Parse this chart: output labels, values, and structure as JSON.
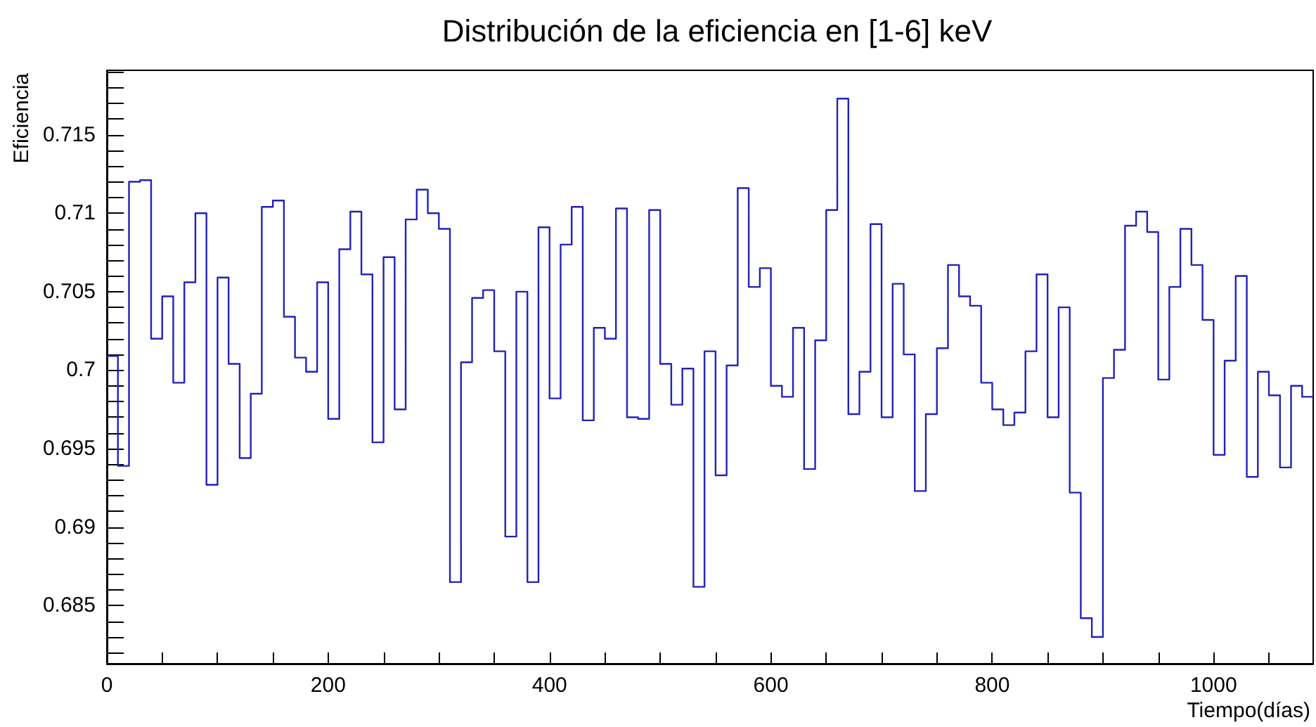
{
  "chart_data": {
    "type": "histogram",
    "title": "Distribución de la eficiencia en [1-6] keV",
    "xlabel": "Tiempo(días)",
    "ylabel": "Eficiencia",
    "color": "#2222bb",
    "grid": false,
    "bins": [
      0,
      10,
      20,
      30,
      40,
      50,
      60,
      70,
      80,
      90,
      100,
      110,
      120,
      130,
      140,
      150,
      160,
      170,
      180,
      190,
      200,
      210,
      220,
      230,
      240,
      250,
      260,
      270,
      280,
      290,
      300,
      310,
      320,
      330,
      340,
      350,
      360,
      370,
      380,
      390,
      400,
      410,
      420,
      430,
      440,
      450,
      460,
      470,
      480,
      490,
      500,
      510,
      520,
      530,
      540,
      550,
      560,
      570,
      580,
      590,
      600,
      610,
      620,
      630,
      640,
      650,
      660,
      670,
      680,
      690,
      700,
      710,
      720,
      730,
      740,
      750,
      760,
      770,
      780,
      790,
      800,
      810,
      820,
      830,
      840,
      850,
      860,
      870,
      880,
      890,
      900,
      910,
      920,
      930,
      940,
      950,
      960,
      970,
      980,
      990,
      1000,
      1010,
      1020,
      1030,
      1040,
      1050,
      1060,
      1070,
      1080,
      1090
    ],
    "values": [
      0.7009,
      0.6939,
      0.712,
      0.7121,
      0.702,
      0.7047,
      0.6992,
      0.7056,
      0.71,
      0.6927,
      0.7059,
      0.7004,
      0.6944,
      0.6985,
      0.7104,
      0.7108,
      0.7034,
      0.7008,
      0.6999,
      0.7056,
      0.6969,
      0.7077,
      0.7101,
      0.7061,
      0.6954,
      0.7072,
      0.6975,
      0.7096,
      0.7115,
      0.71,
      0.709,
      0.6865,
      0.7005,
      0.7046,
      0.7051,
      0.7012,
      0.6894,
      0.705,
      0.6865,
      0.7091,
      0.6982,
      0.708,
      0.7104,
      0.6968,
      0.7027,
      0.702,
      0.7103,
      0.697,
      0.6969,
      0.7102,
      0.7004,
      0.6978,
      0.7001,
      0.6862,
      0.7012,
      0.6933,
      0.7003,
      0.7116,
      0.7053,
      0.7065,
      0.699,
      0.6983,
      0.7027,
      0.6937,
      0.7019,
      0.7102,
      0.7173,
      0.6972,
      0.6999,
      0.7093,
      0.697,
      0.7055,
      0.701,
      0.6923,
      0.6972,
      0.7014,
      0.7067,
      0.7047,
      0.7041,
      0.6992,
      0.6975,
      0.6965,
      0.6973,
      0.7012,
      0.7061,
      0.697,
      0.704,
      0.6922,
      0.6842,
      0.683,
      0.6995,
      0.7013,
      0.7092,
      0.7101,
      0.7088,
      0.6994,
      0.7053,
      0.709,
      0.7067,
      0.7032,
      0.6946,
      0.7006,
      0.706,
      0.6932,
      0.6999,
      0.6984,
      0.6938,
      0.699,
      0.6983
    ],
    "xlim": [
      0,
      1090
    ],
    "xticks": [
      0,
      {
        "value": 50,
        "label": null
      },
      {
        "value": 100,
        "label": null
      },
      {
        "value": 150,
        "label": null
      },
      200,
      {
        "value": 250,
        "label": null
      },
      {
        "value": 300,
        "label": null
      },
      {
        "value": 350,
        "label": null
      },
      400,
      {
        "value": 450,
        "label": null
      },
      {
        "value": 500,
        "label": null
      },
      {
        "value": 550,
        "label": null
      },
      600,
      {
        "value": 650,
        "label": null
      },
      {
        "value": 700,
        "label": null
      },
      {
        "value": 750,
        "label": null
      },
      800,
      {
        "value": 850,
        "label": null
      },
      {
        "value": 900,
        "label": null
      },
      {
        "value": 950,
        "label": null
      },
      1000,
      {
        "value": 1050,
        "label": null
      }
    ],
    "ylim": [
      0.6813,
      0.7191
    ],
    "yticks": [
      {
        "value": 0.682,
        "label": null
      },
      {
        "value": 0.683,
        "label": null
      },
      {
        "value": 0.684,
        "label": null
      },
      0.685,
      {
        "value": 0.686,
        "label": null
      },
      {
        "value": 0.687,
        "label": null
      },
      {
        "value": 0.688,
        "label": null
      },
      {
        "value": 0.689,
        "label": null
      },
      0.69,
      {
        "value": 0.691,
        "label": null
      },
      {
        "value": 0.692,
        "label": null
      },
      {
        "value": 0.693,
        "label": null
      },
      {
        "value": 0.694,
        "label": null
      },
      0.695,
      {
        "value": 0.696,
        "label": null
      },
      {
        "value": 0.697,
        "label": null
      },
      {
        "value": 0.698,
        "label": null
      },
      {
        "value": 0.699,
        "label": null
      },
      0.7,
      {
        "value": 0.701,
        "label": null
      },
      {
        "value": 0.702,
        "label": null
      },
      {
        "value": 0.703,
        "label": null
      },
      {
        "value": 0.704,
        "label": null
      },
      0.705,
      {
        "value": 0.706,
        "label": null
      },
      {
        "value": 0.707,
        "label": null
      },
      {
        "value": 0.708,
        "label": null
      },
      {
        "value": 0.709,
        "label": null
      },
      0.71,
      {
        "value": 0.711,
        "label": null
      },
      {
        "value": 0.712,
        "label": null
      },
      {
        "value": 0.713,
        "label": null
      },
      {
        "value": 0.714,
        "label": null
      },
      0.715,
      {
        "value": 0.716,
        "label": null
      },
      {
        "value": 0.717,
        "label": null
      },
      {
        "value": 0.718,
        "label": null
      },
      {
        "value": 0.719,
        "label": null
      }
    ]
  }
}
